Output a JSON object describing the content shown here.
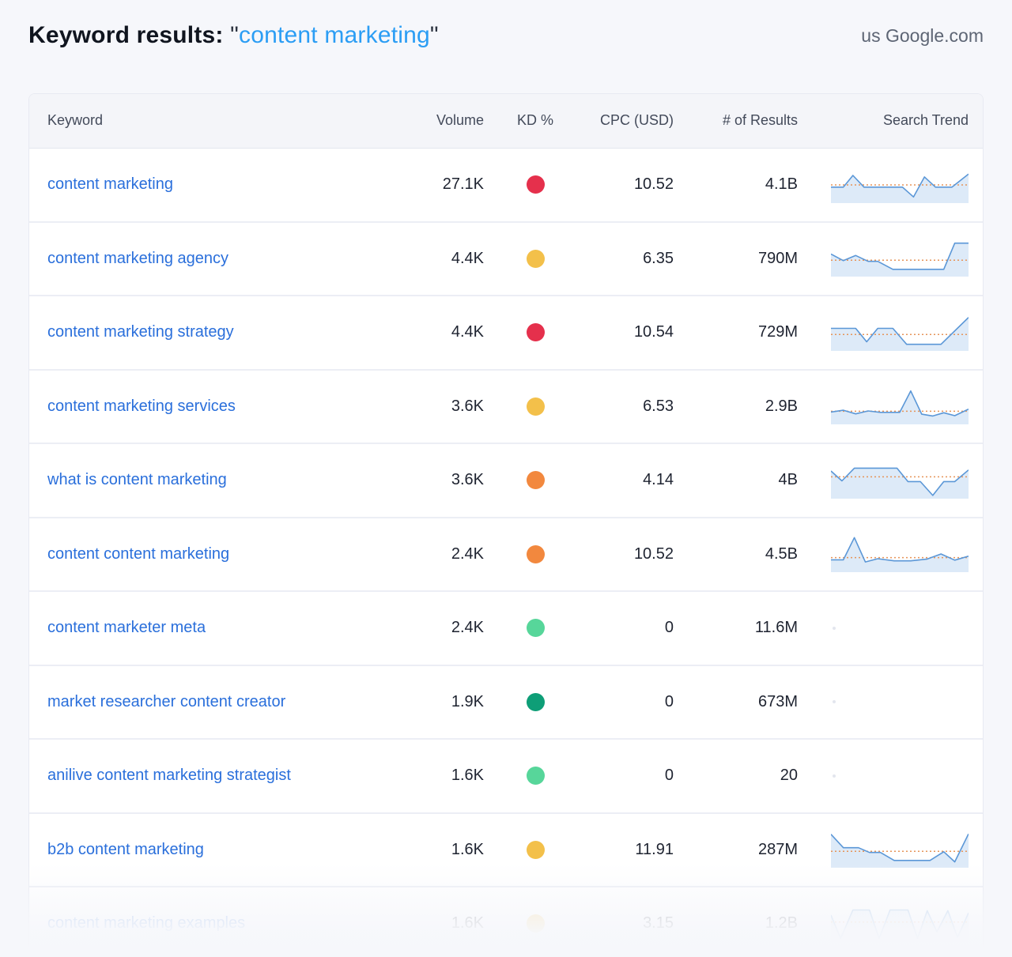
{
  "header": {
    "title": "Keyword results:",
    "quote_open": "\"",
    "query": "content marketing",
    "quote_close": "\"",
    "scope": "us",
    "domain": "Google.com"
  },
  "table": {
    "columns": [
      "Keyword",
      "Volume",
      "KD %",
      "CPC (USD)",
      "# of Results",
      "Search Trend"
    ],
    "colors": {
      "link": "#2a6fdb",
      "trend_line": "#5b97d7",
      "trend_fill": "#ddeaf8",
      "trend_avg": "#e69459",
      "kd_red": "#e5304c",
      "kd_amber": "#f3c04a",
      "kd_orange": "#f2883e",
      "kd_green": "#57d69a",
      "kd_teal": "#0e9e77"
    },
    "rows": [
      {
        "keyword": "content marketing",
        "volume": "27.1K",
        "kd_color": "#e5304c",
        "cpc": "10.52",
        "results": "4.1B",
        "trend": {
          "avg": 50,
          "points": [
            [
              0,
              44
            ],
            [
              9,
              44
            ],
            [
              16,
              76
            ],
            [
              24,
              44
            ],
            [
              38,
              44
            ],
            [
              52,
              44
            ],
            [
              60,
              17
            ],
            [
              68,
              72
            ],
            [
              76,
              44
            ],
            [
              88,
              44
            ],
            [
              100,
              80
            ]
          ]
        }
      },
      {
        "keyword": "content marketing agency",
        "volume": "4.4K",
        "kd_color": "#f3c04a",
        "cpc": "6.35",
        "results": "790M",
        "trend": {
          "avg": 45,
          "points": [
            [
              0,
              62
            ],
            [
              9,
              44
            ],
            [
              18,
              58
            ],
            [
              27,
              42
            ],
            [
              34,
              42
            ],
            [
              45,
              20
            ],
            [
              82,
              20
            ],
            [
              90,
              92
            ],
            [
              100,
              92
            ]
          ]
        }
      },
      {
        "keyword": "content marketing strategy",
        "volume": "4.4K",
        "kd_color": "#e5304c",
        "cpc": "10.54",
        "results": "729M",
        "trend": {
          "avg": 45,
          "points": [
            [
              0,
              62
            ],
            [
              18,
              62
            ],
            [
              26,
              25
            ],
            [
              34,
              62
            ],
            [
              45,
              62
            ],
            [
              55,
              18
            ],
            [
              80,
              18
            ],
            [
              100,
              92
            ]
          ]
        }
      },
      {
        "keyword": "content marketing services",
        "volume": "3.6K",
        "kd_color": "#f3c04a",
        "cpc": "6.53",
        "results": "2.9B",
        "trend": {
          "avg": 36,
          "points": [
            [
              0,
              34
            ],
            [
              9,
              39
            ],
            [
              18,
              29
            ],
            [
              27,
              37
            ],
            [
              36,
              33
            ],
            [
              50,
              33
            ],
            [
              58,
              92
            ],
            [
              66,
              28
            ],
            [
              74,
              23
            ],
            [
              82,
              32
            ],
            [
              90,
              24
            ],
            [
              100,
              42
            ]
          ]
        }
      },
      {
        "keyword": "what is content marketing",
        "volume": "3.6K",
        "kd_color": "#f2883e",
        "cpc": "4.14",
        "results": "4B",
        "trend": {
          "avg": 60,
          "points": [
            [
              0,
              76
            ],
            [
              8,
              49
            ],
            [
              17,
              84
            ],
            [
              48,
              84
            ],
            [
              56,
              47
            ],
            [
              65,
              47
            ],
            [
              74,
              9
            ],
            [
              82,
              47
            ],
            [
              90,
              47
            ],
            [
              100,
              79
            ]
          ]
        }
      },
      {
        "keyword": "content content marketing",
        "volume": "2.4K",
        "kd_color": "#f2883e",
        "cpc": "10.52",
        "results": "4.5B",
        "trend": {
          "avg": 40,
          "points": [
            [
              0,
              34
            ],
            [
              9,
              34
            ],
            [
              17,
              95
            ],
            [
              25,
              28
            ],
            [
              34,
              37
            ],
            [
              46,
              31
            ],
            [
              58,
              31
            ],
            [
              70,
              36
            ],
            [
              80,
              50
            ],
            [
              90,
              33
            ],
            [
              100,
              44
            ]
          ]
        }
      },
      {
        "keyword": "content marketer meta",
        "volume": "2.4K",
        "kd_color": "#57d69a",
        "cpc": "0",
        "results": "11.6M",
        "trend": null
      },
      {
        "keyword": "market researcher content creator",
        "volume": "1.9K",
        "kd_color": "#0e9e77",
        "cpc": "0",
        "results": "673M",
        "trend": null
      },
      {
        "keyword": "anilive content marketing strategist",
        "volume": "1.6K",
        "kd_color": "#57d69a",
        "cpc": "0",
        "results": "20",
        "trend": null
      },
      {
        "keyword": "b2b content marketing",
        "volume": "1.6K",
        "kd_color": "#f3c04a",
        "cpc": "11.91",
        "results": "287M",
        "trend": {
          "avg": 45,
          "points": [
            [
              0,
              92
            ],
            [
              9,
              55
            ],
            [
              20,
              55
            ],
            [
              28,
              42
            ],
            [
              36,
              42
            ],
            [
              46,
              20
            ],
            [
              72,
              20
            ],
            [
              82,
              44
            ],
            [
              90,
              16
            ],
            [
              100,
              93
            ]
          ]
        }
      },
      {
        "keyword": "content marketing examples",
        "volume": "1.6K",
        "kd_color": "#f3c04a",
        "cpc": "3.15",
        "results": "1.2B",
        "faded": true,
        "trend": {
          "avg": 55,
          "points": [
            [
              0,
              74
            ],
            [
              7,
              10
            ],
            [
              16,
              88
            ],
            [
              28,
              88
            ],
            [
              35,
              10
            ],
            [
              43,
              88
            ],
            [
              56,
              88
            ],
            [
              63,
              10
            ],
            [
              70,
              86
            ],
            [
              77,
              28
            ],
            [
              85,
              86
            ],
            [
              92,
              13
            ],
            [
              100,
              80
            ]
          ]
        }
      }
    ]
  }
}
